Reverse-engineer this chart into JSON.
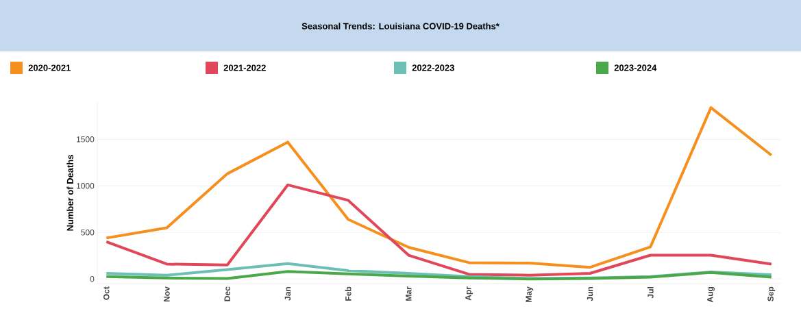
{
  "chart_data": {
    "type": "line",
    "title": "Seasonal Trends: Louisiana COVID-19 Deaths*",
    "ylabel": "Number of Deaths",
    "categories": [
      "Oct",
      "Nov",
      "Dec",
      "Jan",
      "Feb",
      "Mar",
      "Apr",
      "May",
      "Jun",
      "Jul",
      "Aug",
      "Sep"
    ],
    "series": [
      {
        "name": "2020-2021",
        "color": "#f5901e",
        "values": [
          440,
          550,
          1130,
          1470,
          640,
          340,
          175,
          170,
          125,
          345,
          1840,
          1330
        ]
      },
      {
        "name": "2021-2022",
        "color": "#e0475a",
        "values": [
          400,
          160,
          150,
          1010,
          845,
          255,
          50,
          40,
          60,
          255,
          255,
          160
        ]
      },
      {
        "name": "2022-2023",
        "color": "#6bbfb5",
        "values": [
          60,
          40,
          100,
          165,
          90,
          60,
          25,
          5,
          10,
          25,
          75,
          45
        ]
      },
      {
        "name": "2023-2024",
        "color": "#4aa84a",
        "values": [
          25,
          10,
          5,
          80,
          55,
          30,
          10,
          0,
          5,
          20,
          70,
          20
        ]
      }
    ],
    "ylim": [
      -50,
      1900
    ],
    "yticks": [
      0,
      500,
      1000,
      1500
    ],
    "grid": "y",
    "legend": "top",
    "marker": "none",
    "line_style": "solid"
  }
}
